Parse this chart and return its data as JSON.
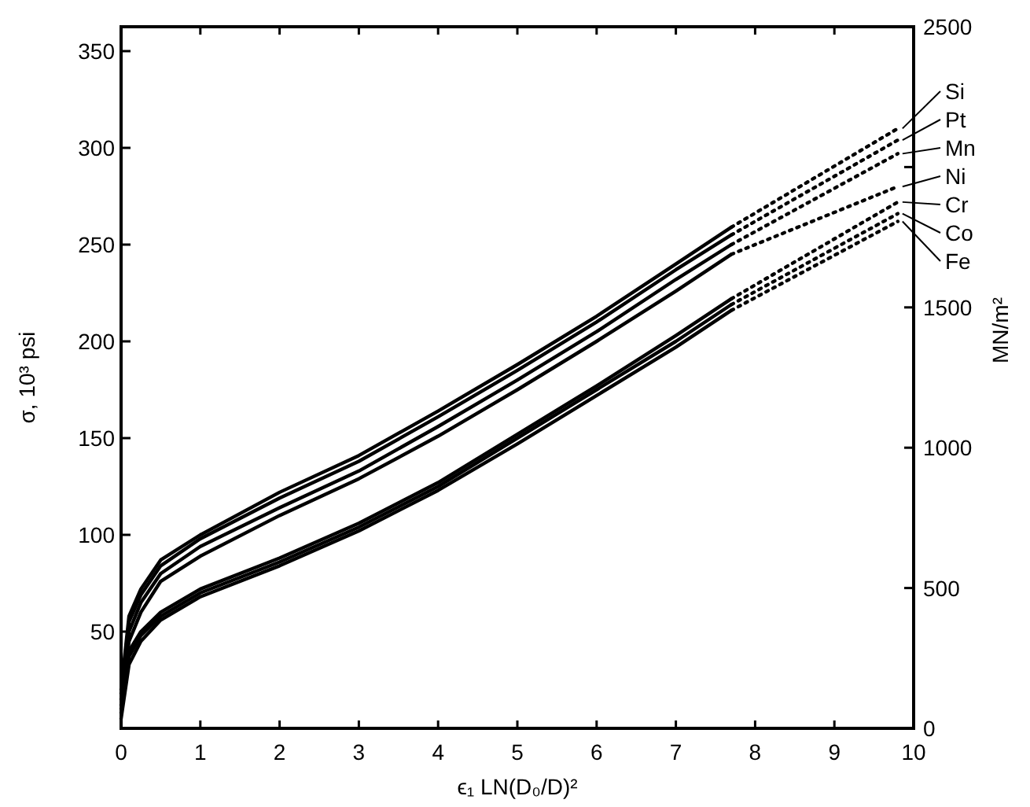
{
  "chart_data": {
    "type": "line",
    "xlabel": "ϵ₁ LN(D₀/D)²",
    "ylabel": "σ, 10³ psi",
    "y2label": "MN/m²",
    "xlim": [
      0,
      10
    ],
    "xticks": [
      0,
      1,
      2,
      3,
      4,
      5,
      6,
      7,
      8,
      9,
      10
    ],
    "ylim": [
      0,
      362.6
    ],
    "yticks": [
      50,
      100,
      150,
      200,
      250,
      300,
      350
    ],
    "y2lim": [
      0,
      2500
    ],
    "y2ticks": [
      0,
      500,
      1000,
      1500,
      {
        "value": 2000,
        "label": null
      },
      2500
    ],
    "tick_labels": "xy",
    "marker": "none",
    "grid": false,
    "legend": "right",
    "series": [
      {
        "name": "Si",
        "color": "#000000",
        "line_style": "solid",
        "x": [
          0,
          0.1,
          0.25,
          0.5,
          1,
          2,
          3,
          4,
          5,
          6,
          7,
          7.7
        ],
        "values": [
          20,
          58,
          72,
          87,
          100,
          122,
          141,
          164,
          188,
          213,
          240,
          259
        ]
      },
      {
        "name": "Pt",
        "color": "#000000",
        "line_style": "solid",
        "x": [
          0,
          0.1,
          0.25,
          0.5,
          1,
          2,
          3,
          4,
          5,
          6,
          7,
          7.7
        ],
        "values": [
          18,
          55,
          69,
          84,
          98,
          119,
          138,
          161,
          185,
          210,
          237,
          255
        ]
      },
      {
        "name": "Mn",
        "color": "#000000",
        "line_style": "solid",
        "x": [
          0,
          0.1,
          0.25,
          0.5,
          1,
          2,
          3,
          4,
          5,
          6,
          7,
          7.7
        ],
        "values": [
          15,
          50,
          65,
          80,
          94,
          114,
          133,
          156,
          180,
          205,
          232,
          250
        ]
      },
      {
        "name": "Ni",
        "color": "#000000",
        "line_style": "solid",
        "x": [
          0,
          0.1,
          0.25,
          0.5,
          1,
          2,
          3,
          4,
          5,
          6,
          7,
          7.7
        ],
        "values": [
          12,
          45,
          60,
          76,
          89,
          110,
          129,
          151,
          175,
          200,
          226,
          245
        ]
      },
      {
        "name": "Cr",
        "color": "#000000",
        "line_style": "solid",
        "x": [
          0,
          0.1,
          0.25,
          0.5,
          1,
          2,
          3,
          4,
          5,
          6,
          7,
          7.7
        ],
        "values": [
          10,
          40,
          50,
          60,
          72,
          88,
          106,
          127,
          152,
          177,
          203,
          222
        ]
      },
      {
        "name": "Co",
        "color": "#000000",
        "line_style": "solid",
        "x": [
          0,
          0.1,
          0.25,
          0.5,
          1,
          2,
          3,
          4,
          5,
          6,
          7,
          7.7
        ],
        "values": [
          8,
          37,
          48,
          58,
          70,
          86,
          104,
          125,
          150,
          175,
          200,
          219
        ]
      },
      {
        "name": "Fe",
        "color": "#000000",
        "line_style": "solid",
        "x": [
          0,
          0.1,
          0.25,
          0.5,
          1,
          2,
          3,
          4,
          5,
          6,
          7,
          7.7
        ],
        "values": [
          5,
          33,
          45,
          56,
          68,
          84,
          102,
          123,
          147,
          172,
          197,
          216
        ]
      },
      {
        "color": "#000000",
        "line_style": "dotted",
        "x": [
          7.7,
          9.8
        ],
        "values": [
          259,
          310
        ]
      },
      {
        "color": "#000000",
        "line_style": "dotted",
        "x": [
          7.7,
          9.8
        ],
        "values": [
          255,
          304
        ]
      },
      {
        "color": "#000000",
        "line_style": "dotted",
        "x": [
          7.7,
          9.8
        ],
        "values": [
          250,
          297
        ]
      },
      {
        "color": "#000000",
        "line_style": "dotted",
        "x": [
          7.7,
          9.8
        ],
        "values": [
          245,
          280
        ]
      },
      {
        "color": "#000000",
        "line_style": "dotted",
        "x": [
          7.7,
          9.8
        ],
        "values": [
          222,
          272
        ]
      },
      {
        "color": "#000000",
        "line_style": "dotted",
        "x": [
          7.7,
          9.8
        ],
        "values": [
          219,
          266
        ]
      },
      {
        "color": "#000000",
        "line_style": "dotted",
        "x": [
          7.7,
          9.8
        ],
        "values": [
          216,
          262
        ]
      }
    ]
  }
}
